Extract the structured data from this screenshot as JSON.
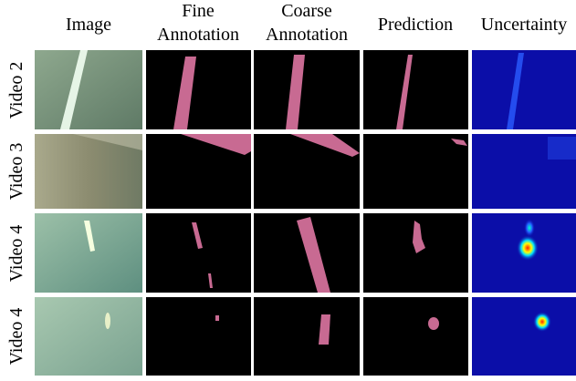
{
  "columns": [
    [
      "Image"
    ],
    [
      "Fine",
      "Annotation"
    ],
    [
      "Coarse",
      "Annotation"
    ],
    [
      "Prediction"
    ],
    [
      "Uncertainty"
    ]
  ],
  "rows": [
    "Video 2",
    "Video 3",
    "Video 4",
    "Video 4"
  ]
}
